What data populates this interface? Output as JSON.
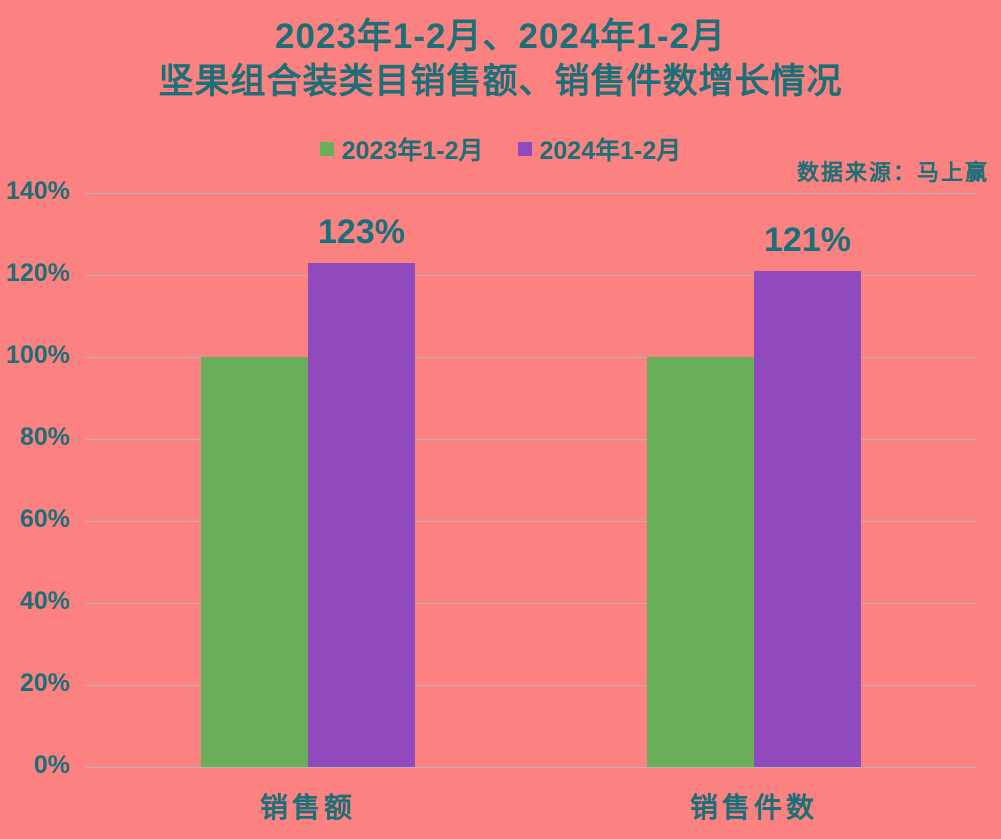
{
  "title": {
    "line1": "2023年1-2月、2024年1-2月",
    "line2": "坚果组合装类目销售额、销售件数增长情况"
  },
  "source_note": "数据来源：马上赢",
  "legend": [
    {
      "label": "2023年1-2月",
      "color": "#6BAE5A"
    },
    {
      "label": "2024年1-2月",
      "color": "#9149BE"
    }
  ],
  "colors": {
    "background": "#FC8181",
    "text": "#1B6F76",
    "gridline": "#B9B2B6",
    "series_2023": "#6BAE5A",
    "series_2024": "#9149BE"
  },
  "chart_data": {
    "type": "bar",
    "title": "2023年1-2月、2024年1-2月 坚果组合装类目销售额、销售件数增长情况",
    "categories": [
      "销售额",
      "销售件数"
    ],
    "series": [
      {
        "name": "2023年1-2月",
        "color": "#6BAE5A",
        "values": [
          100,
          100
        ],
        "show_labels": false
      },
      {
        "name": "2024年1-2月",
        "color": "#9149BE",
        "values": [
          123,
          121
        ],
        "show_labels": true
      }
    ],
    "data_labels": [
      "123%",
      "121%"
    ],
    "xlabel": "",
    "ylabel": "",
    "y_axis": {
      "min": 0,
      "max": 140,
      "step": 20,
      "tick_suffix": "%"
    },
    "y_tick_labels": [
      "0%",
      "20%",
      "40%",
      "60%",
      "80%",
      "100%",
      "120%",
      "140%"
    ],
    "grid": true,
    "legend_position": "top"
  }
}
